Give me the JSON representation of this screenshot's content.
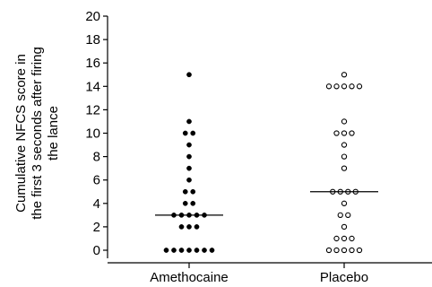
{
  "chart_data": {
    "type": "scatter",
    "subtype": "dot-plot",
    "title": "",
    "ylabel_lines": [
      "Cumulative NFCS score in",
      "the first 3 seconds after firing",
      "the lance"
    ],
    "ylim": [
      0,
      20
    ],
    "yticks": [
      0,
      2,
      4,
      6,
      8,
      10,
      12,
      14,
      16,
      18,
      20
    ],
    "grid": false,
    "categories": [
      "Amethocaine",
      "Placebo"
    ],
    "series": [
      {
        "category": "Amethocaine",
        "marker": "filled-circle",
        "color": "#000000",
        "median": 3,
        "values": [
          15,
          11,
          10,
          10,
          9,
          8,
          7,
          6,
          5,
          5,
          4,
          4,
          3,
          3,
          3,
          3,
          3,
          2,
          2,
          2,
          0,
          0,
          0,
          0,
          0,
          0,
          0
        ]
      },
      {
        "category": "Placebo",
        "marker": "open-circle",
        "color": "#000000",
        "median": 5,
        "values": [
          15,
          14,
          14,
          14,
          14,
          14,
          11,
          10,
          10,
          10,
          9,
          8,
          7,
          5,
          5,
          5,
          5,
          4,
          3,
          3,
          2,
          1,
          1,
          1,
          0,
          0,
          0,
          0,
          0
        ]
      }
    ]
  }
}
